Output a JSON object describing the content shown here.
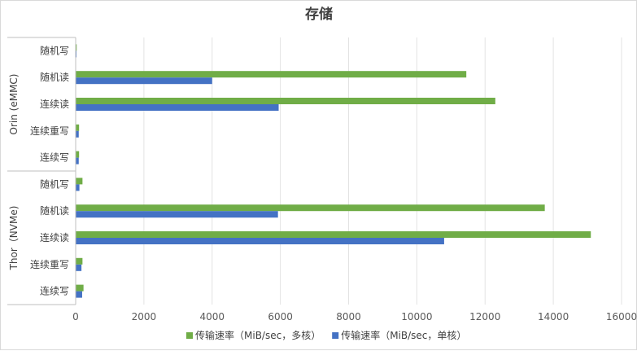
{
  "chart_data": {
    "type": "bar",
    "orientation": "horizontal",
    "title": "存储",
    "xlim": [
      0,
      16000
    ],
    "x_ticks": [
      "0",
      "2000",
      "4000",
      "6000",
      "8000",
      "10000",
      "12000",
      "14000",
      "16000"
    ],
    "grid": true,
    "legend_position": "bottom",
    "groups": [
      {
        "name": "Orin (eMMC)",
        "categories": [
          "随机写",
          "随机读",
          "连续读",
          "连续重写",
          "连续写"
        ]
      },
      {
        "name": "Thor（NVMe)",
        "categories": [
          "随机写",
          "随机读",
          "连续读",
          "连续重写",
          "连续写"
        ]
      }
    ],
    "series": [
      {
        "name": "传输速率（MiB/sec，多核）",
        "color": "#70ad47",
        "values": [
          30,
          11450,
          12300,
          100,
          100,
          200,
          13750,
          15100,
          200,
          230
        ]
      },
      {
        "name": "传输速率（MiB/sec，单核）",
        "color": "#4472c4",
        "values": [
          20,
          4000,
          5950,
          90,
          90,
          110,
          5930,
          10800,
          170,
          190
        ]
      }
    ]
  }
}
